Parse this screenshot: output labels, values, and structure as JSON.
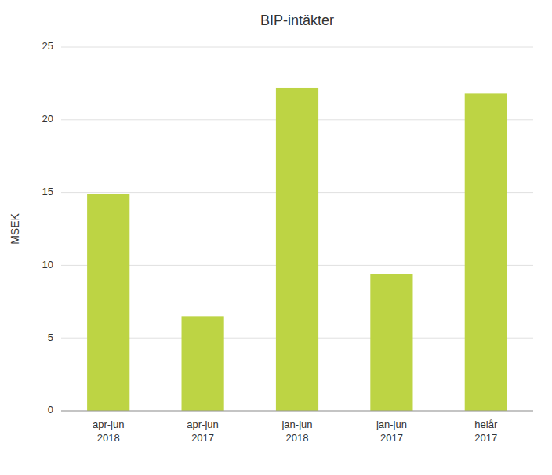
{
  "chart_data": {
    "type": "bar",
    "title": "BIP-intäkter",
    "ylabel": "MSEK",
    "categories": [
      "apr-jun\n2018",
      "apr-jun\n2017",
      "jan-jun\n2018",
      "jan-jun\n2017",
      "helår\n2017"
    ],
    "values": [
      14.9,
      6.5,
      22.2,
      9.4,
      21.8
    ],
    "color": "#bdd444",
    "ylim": [
      0,
      25
    ],
    "yticks": [
      0,
      5,
      10,
      15,
      20,
      25
    ],
    "grid": true
  }
}
